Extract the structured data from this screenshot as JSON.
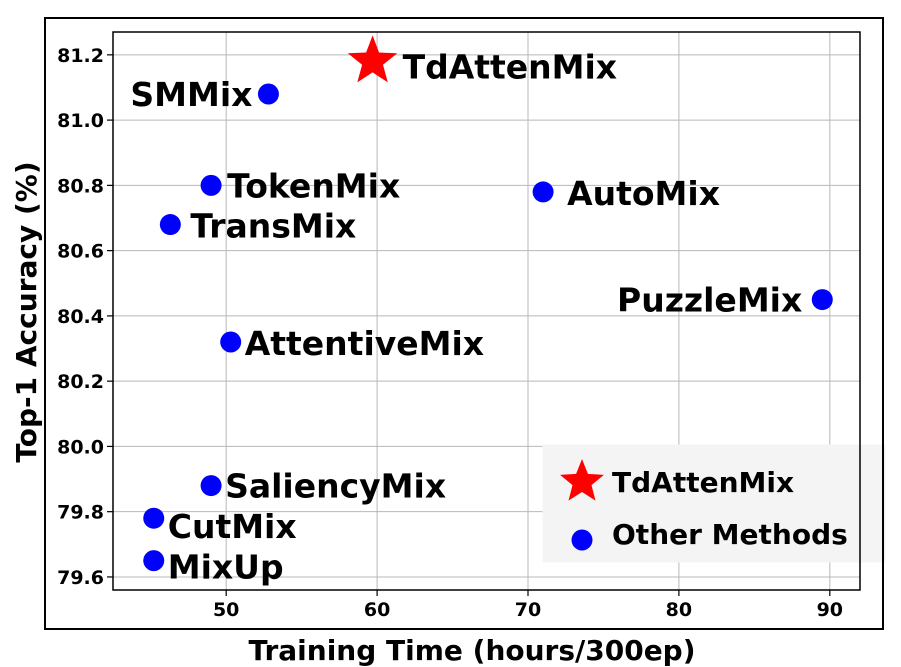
{
  "chart_data": {
    "type": "scatter",
    "xlabel": "Training Time (hours/300ep)",
    "ylabel": "Top-1 Accuracy (%)",
    "xlim": [
      42.5,
      92
    ],
    "ylim": [
      79.56,
      81.27
    ],
    "xticks": [
      50,
      60,
      70,
      80,
      90
    ],
    "yticks": [
      79.6,
      79.8,
      80.0,
      80.2,
      80.4,
      80.6,
      80.8,
      81.0,
      81.2
    ],
    "grid": true,
    "legend_position": "lower-right",
    "series": [
      {
        "name": "TdAttenMix",
        "marker": "star",
        "color": "#ff0000",
        "points": [
          {
            "label": "TdAttenMix",
            "x": 59.7,
            "y": 81.18
          }
        ]
      },
      {
        "name": "Other Methods",
        "marker": "circle",
        "color": "#0000ff",
        "points": [
          {
            "label": "SMMix",
            "x": 52.8,
            "y": 81.08
          },
          {
            "label": "TokenMix",
            "x": 49.0,
            "y": 80.8
          },
          {
            "label": "TransMix",
            "x": 46.3,
            "y": 80.68
          },
          {
            "label": "AutoMix",
            "x": 71.0,
            "y": 80.78
          },
          {
            "label": "PuzzleMix",
            "x": 89.5,
            "y": 80.45
          },
          {
            "label": "AttentiveMix",
            "x": 50.3,
            "y": 80.32
          },
          {
            "label": "SaliencyMix",
            "x": 49.0,
            "y": 79.88
          },
          {
            "label": "CutMix",
            "x": 45.2,
            "y": 79.78
          },
          {
            "label": "MixUp",
            "x": 45.2,
            "y": 79.65
          }
        ]
      }
    ]
  }
}
